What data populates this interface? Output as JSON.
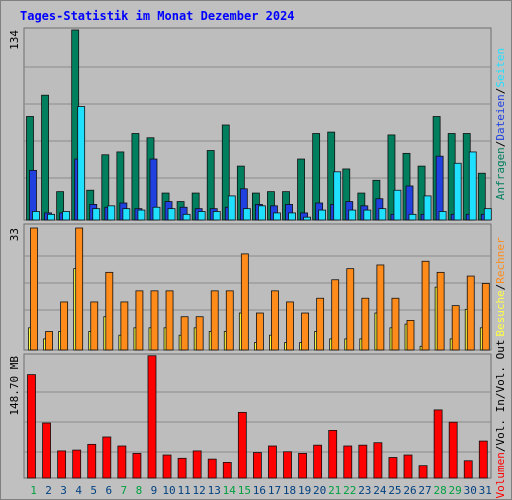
{
  "title": "Tages-Statistik im Monat Dezember 2024",
  "colors": {
    "background": "#c0c0c0",
    "title": "#0000ff",
    "anfragen": "#007f5f",
    "dateien": "#2040e0",
    "seiten": "#20e0ff",
    "besuche": "#ffff40",
    "rechner": "#ff8c1a",
    "volumen": "#ff0000",
    "weekday_label": "#004080",
    "weekend_label": "#00a040"
  },
  "chart_data": [
    {
      "type": "bar",
      "panel": "top",
      "max_label": "134",
      "ylim": [
        0,
        134
      ],
      "right_labels": [
        "Anfragen",
        "Dateien",
        "Seiten"
      ],
      "right_separator": "/",
      "x": [
        1,
        2,
        3,
        4,
        5,
        6,
        7,
        8,
        9,
        10,
        11,
        12,
        13,
        14,
        15,
        16,
        17,
        18,
        19,
        20,
        21,
        22,
        23,
        24,
        25,
        26,
        27,
        28,
        29,
        30,
        31
      ],
      "weekend_days": [
        1,
        7,
        8,
        14,
        15,
        21,
        22,
        28,
        29
      ],
      "series": [
        {
          "name": "Anfragen",
          "values": [
            73,
            88,
            20,
            134,
            21,
            46,
            48,
            61,
            58,
            19,
            13,
            19,
            49,
            67,
            38,
            19,
            20,
            20,
            43,
            61,
            62,
            36,
            19,
            28,
            60,
            47,
            38,
            73,
            61,
            61,
            33
          ]
        },
        {
          "name": "Dateien",
          "values": [
            35,
            5,
            5,
            43,
            11,
            9,
            12,
            8,
            43,
            13,
            9,
            8,
            8,
            9,
            22,
            11,
            10,
            11,
            5,
            12,
            11,
            13,
            10,
            15,
            4,
            24,
            4,
            45,
            4,
            4,
            4
          ]
        },
        {
          "name": "Seiten",
          "values": [
            6,
            4,
            6,
            80,
            8,
            10,
            8,
            7,
            9,
            8,
            4,
            6,
            6,
            17,
            8,
            10,
            5,
            5,
            2,
            7,
            34,
            7,
            7,
            8,
            21,
            4,
            17,
            6,
            40,
            48,
            8
          ]
        }
      ]
    },
    {
      "type": "bar",
      "panel": "middle",
      "max_label": "33",
      "ylim": [
        0,
        33
      ],
      "right_labels": [
        "Besuche",
        "Rechner"
      ],
      "right_separator": "/",
      "x": [
        1,
        2,
        3,
        4,
        5,
        6,
        7,
        8,
        9,
        10,
        11,
        12,
        13,
        14,
        15,
        16,
        17,
        18,
        19,
        20,
        21,
        22,
        23,
        24,
        25,
        26,
        27,
        28,
        29,
        30,
        31
      ],
      "series": [
        {
          "name": "Besuche",
          "values": [
            6,
            3,
            5,
            22,
            5,
            9,
            4,
            6,
            6,
            6,
            4,
            6,
            5,
            5,
            10,
            2,
            4,
            2,
            2,
            5,
            3,
            3,
            3,
            10,
            6,
            7,
            1,
            17,
            3,
            11,
            6
          ]
        },
        {
          "name": "Rechner",
          "values": [
            33,
            5,
            13,
            33,
            13,
            21,
            13,
            16,
            16,
            16,
            9,
            9,
            16,
            16,
            26,
            10,
            16,
            13,
            10,
            14,
            19,
            22,
            14,
            23,
            14,
            8,
            24,
            21,
            12,
            20,
            18
          ]
        }
      ]
    },
    {
      "type": "bar",
      "panel": "bottom",
      "max_label": "148.70 MB",
      "ylim": [
        0,
        148.7
      ],
      "right_labels": [
        "Volumen",
        "Vol. In",
        "Vol. Out"
      ],
      "right_separator": "/",
      "x": [
        1,
        2,
        3,
        4,
        5,
        6,
        7,
        8,
        9,
        10,
        11,
        12,
        13,
        14,
        15,
        16,
        17,
        18,
        19,
        20,
        21,
        22,
        23,
        24,
        25,
        26,
        27,
        28,
        29,
        30,
        31
      ],
      "series": [
        {
          "name": "Volumen",
          "values": [
            126,
            67,
            33,
            34,
            41,
            50,
            39,
            30,
            149,
            28,
            24,
            33,
            23,
            19,
            80,
            31,
            39,
            32,
            30,
            40,
            58,
            39,
            40,
            43,
            25,
            28,
            15,
            83,
            68,
            21,
            45
          ]
        }
      ]
    }
  ]
}
